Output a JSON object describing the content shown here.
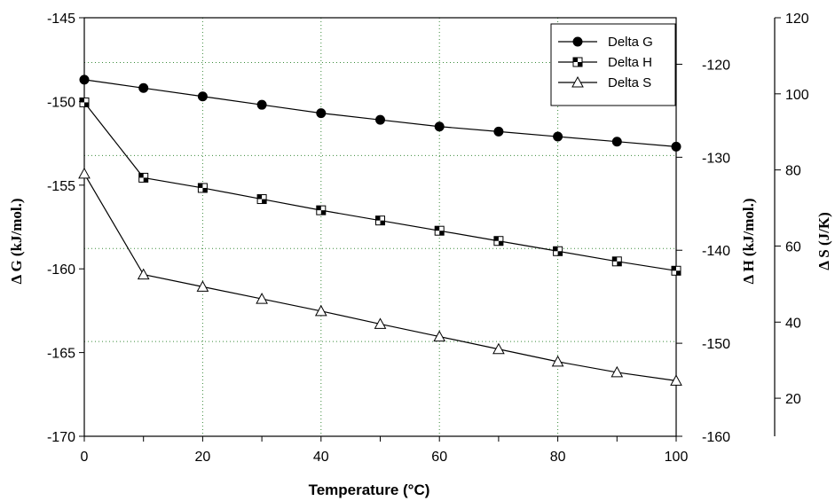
{
  "chart_data": {
    "type": "line",
    "x": [
      0,
      10,
      20,
      30,
      40,
      50,
      60,
      70,
      80,
      90,
      100
    ],
    "xlabel": "Temperature (°C)",
    "xlim": [
      0,
      100
    ],
    "xticks": [
      "0",
      "20",
      "40",
      "60",
      "80",
      "100"
    ],
    "axes": {
      "left": {
        "label": "Δ G (kJ/mol.)",
        "ylim": [
          -170,
          -145
        ],
        "ticks": [
          "-145",
          "-150",
          "-155",
          "-160",
          "-165",
          "-170"
        ]
      },
      "right_inner": {
        "label": "Δ H (kJ/mol.)",
        "ylim": [
          -160,
          -115
        ],
        "ticks": [
          "-120",
          "-130",
          "-140",
          "-150",
          "-160"
        ]
      },
      "right_outer": {
        "label": "Δ S (J/K)",
        "ylim": [
          10,
          120
        ],
        "ticks": [
          "20",
          "40",
          "60",
          "80",
          "100",
          "120"
        ]
      }
    },
    "series": [
      {
        "name": "Delta G",
        "axis": "left",
        "marker": "filled-circle",
        "values": [
          -148.7,
          -149.2,
          -149.7,
          -150.2,
          -150.7,
          -151.1,
          -151.5,
          -151.8,
          -152.1,
          -152.4,
          -152.7
        ]
      },
      {
        "name": "Delta H",
        "axis": "right_inner",
        "marker": "checkered-square",
        "values": [
          -124.1,
          -132.2,
          -133.3,
          -134.5,
          -135.7,
          -136.8,
          -137.9,
          -139.0,
          -140.1,
          -141.2,
          -142.2
        ]
      },
      {
        "name": "Delta S",
        "axis": "right_outer",
        "marker": "open-triangle",
        "values": [
          79.0,
          52.5,
          49.3,
          46.1,
          42.9,
          39.5,
          36.2,
          32.9,
          29.6,
          26.8,
          24.6
        ]
      }
    ],
    "grid": "dotted, vertical at labeled x ticks, horizontal at right-axis ticks",
    "legend_position": "top-right"
  }
}
